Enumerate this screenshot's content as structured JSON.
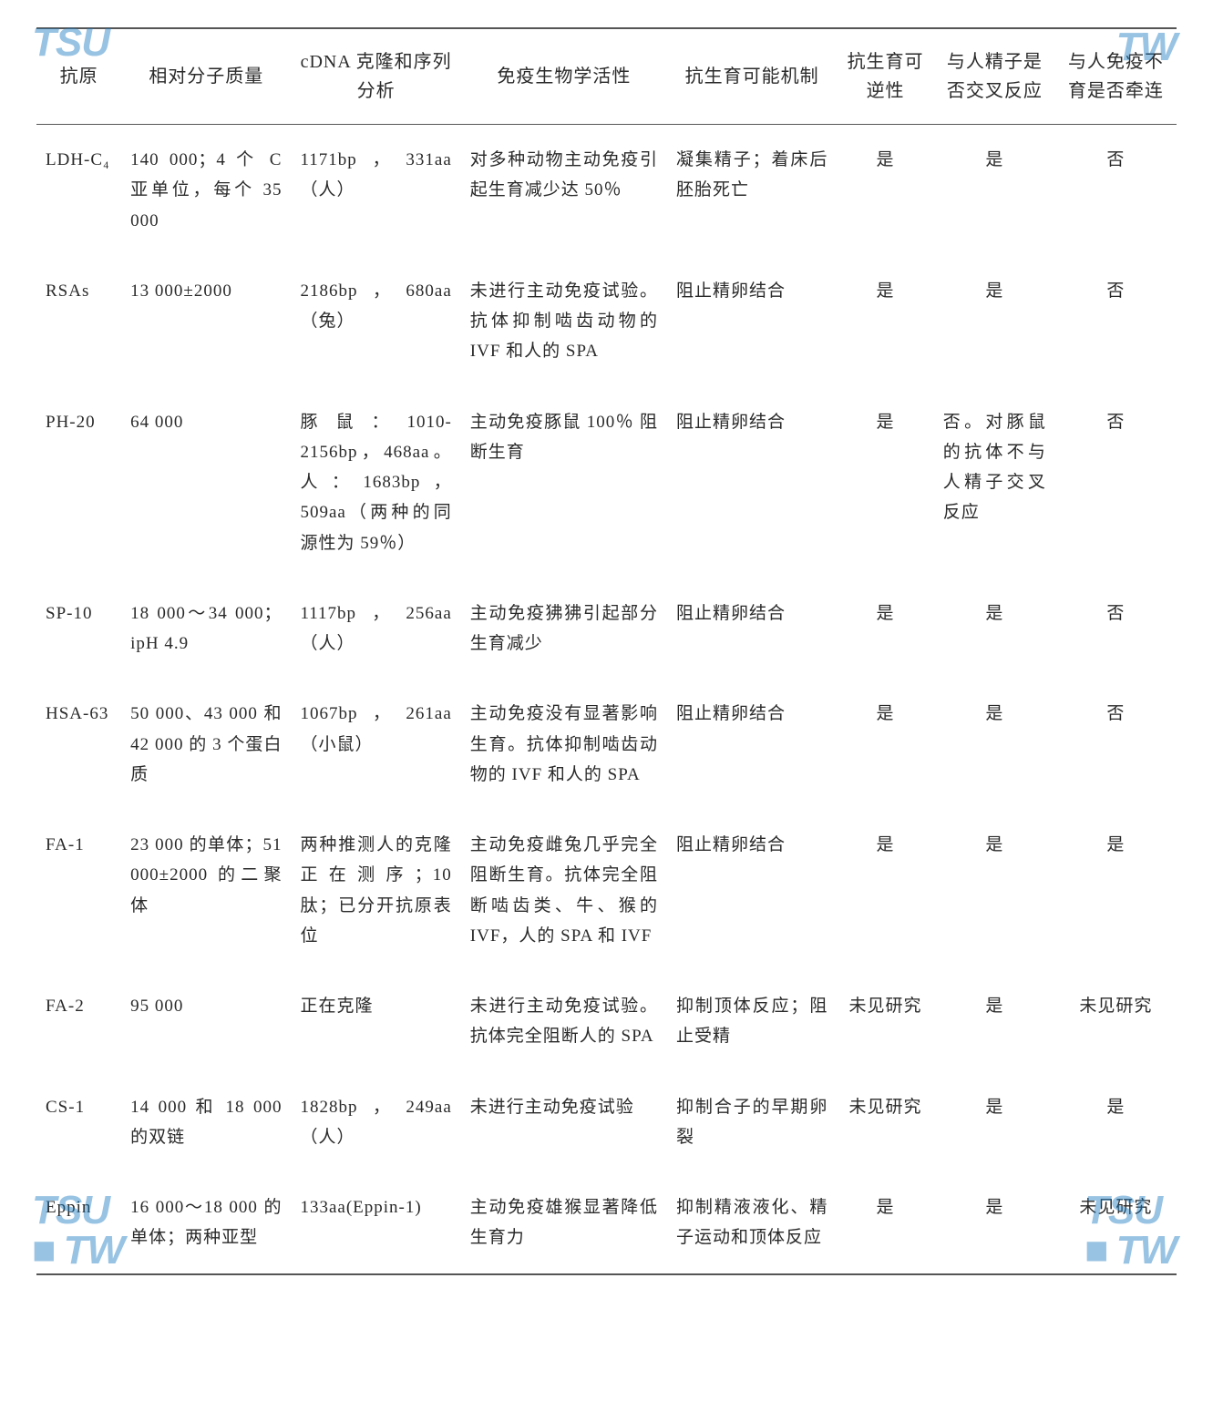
{
  "watermark": {
    "tsu": "TSU",
    "dot": "■",
    "tw": "TW"
  },
  "headers": {
    "antigen": "抗原",
    "mw": "相对分子质量",
    "cdna": "cDNA 克隆和序列分析",
    "immuno": "免疫生物学活性",
    "mechanism": "抗生育可能机制",
    "reversible": "抗生育可逆性",
    "crossreact": "与人精子是否交叉反应",
    "infertility": "与人免疫不育是否牵连"
  },
  "rows": [
    {
      "antigen": "LDH-C₄",
      "mw": "140 000；4 个 C 亚单位，每个 35 000",
      "cdna": "1171bp，331aa（人）",
      "immuno": "对多种动物主动免疫引起生育减少达 50％",
      "mechanism": "凝集精子；着床后胚胎死亡",
      "reversible": "是",
      "crossreact": "是",
      "infertility": "否"
    },
    {
      "antigen": "RSAs",
      "mw": "13 000±2000",
      "cdna": "2186bp，680aa（兔）",
      "immuno": "未进行主动免疫试验。抗体抑制啮齿动物的 IVF 和人的 SPA",
      "mechanism": "阻止精卵结合",
      "reversible": "是",
      "crossreact": "是",
      "infertility": "否"
    },
    {
      "antigen": "PH-20",
      "mw": "64 000",
      "cdna": "豚鼠：1010-2156bp，468aa。人：1683bp，509aa（两种的同源性为 59％）",
      "immuno": "主动免疫豚鼠 100％ 阻断生育",
      "mechanism": "阻止精卵结合",
      "reversible": "是",
      "crossreact": "否。对豚鼠的抗体不与人精子交叉反应",
      "infertility": "否"
    },
    {
      "antigen": "SP-10",
      "mw": "18 000～34 000；ipH 4.9",
      "cdna": "1117bp，256aa（人）",
      "immuno": "主动免疫狒狒引起部分生育减少",
      "mechanism": "阻止精卵结合",
      "reversible": "是",
      "crossreact": "是",
      "infertility": "否"
    },
    {
      "antigen": "HSA-63",
      "mw": "50 000、43 000 和 42 000 的 3 个蛋白质",
      "cdna": "1067bp，261aa（小鼠）",
      "immuno": "主动免疫没有显著影响生育。抗体抑制啮齿动物的 IVF 和人的 SPA",
      "mechanism": "阻止精卵结合",
      "reversible": "是",
      "crossreact": "是",
      "infertility": "否"
    },
    {
      "antigen": "FA-1",
      "mw": "23 000 的单体；51 000±2000 的二聚体",
      "cdna": "两种推测人的克隆正在测序；10 肽；已分开抗原表位",
      "immuno": "主动免疫雌兔几乎完全阻断生育。抗体完全阻断啮齿类、牛、猴的 IVF，人的 SPA 和 IVF",
      "mechanism": "阻止精卵结合",
      "reversible": "是",
      "crossreact": "是",
      "infertility": "是"
    },
    {
      "antigen": "FA-2",
      "mw": "95 000",
      "cdna": "正在克隆",
      "immuno": "未进行主动免疫试验。抗体完全阻断人的 SPA",
      "mechanism": "抑制顶体反应；阻止受精",
      "reversible": "未见研究",
      "crossreact": "是",
      "infertility": "未见研究"
    },
    {
      "antigen": "CS-1",
      "mw": "14 000 和 18 000 的双链",
      "cdna": "1828bp，249aa（人）",
      "immuno": "未进行主动免疫试验",
      "mechanism": "抑制合子的早期卵裂",
      "reversible": "未见研究",
      "crossreact": "是",
      "infertility": "是"
    },
    {
      "antigen": "Eppin",
      "mw": "16 000～18 000 的单体；两种亚型",
      "cdna": "133aa(Eppin-1)",
      "immuno": "主动免疫雄猴显著降低生育力",
      "mechanism": "抑制精液液化、精子运动和顶体反应",
      "reversible": "是",
      "crossreact": "是",
      "infertility": "未见研究"
    }
  ]
}
